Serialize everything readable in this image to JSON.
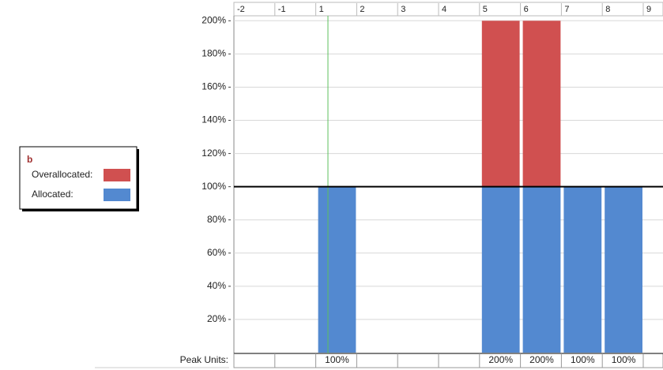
{
  "chart_data": {
    "type": "bar",
    "stacked": true,
    "legend": {
      "title": "b"
    },
    "categories": [
      "-2",
      "-1",
      "1",
      "2",
      "3",
      "4",
      "5",
      "6",
      "7",
      "8",
      "9"
    ],
    "series": [
      {
        "name": "Allocated:",
        "color": "#5389d0",
        "values": [
          null,
          null,
          100,
          null,
          null,
          null,
          100,
          100,
          100,
          100,
          null
        ]
      },
      {
        "name": "Overallocated:",
        "color": "#d05050",
        "values": [
          null,
          null,
          null,
          null,
          null,
          null,
          100,
          100,
          null,
          null,
          null
        ]
      }
    ],
    "peak_units": {
      "label": "Peak Units:",
      "values": [
        null,
        null,
        100,
        null,
        null,
        null,
        200,
        200,
        100,
        100,
        null
      ],
      "value_labels": [
        null,
        null,
        "100%",
        null,
        null,
        null,
        "200%",
        "200%",
        "100%",
        "100%",
        null
      ]
    },
    "ylim": [
      0,
      203
    ],
    "yticks": [
      {
        "value": 20,
        "label": "20%"
      },
      {
        "value": 40,
        "label": "40%"
      },
      {
        "value": 60,
        "label": "60%"
      },
      {
        "value": 80,
        "label": "80%"
      },
      {
        "value": 100,
        "label": "100%"
      },
      {
        "value": 120,
        "label": "120%"
      },
      {
        "value": 140,
        "label": "140%"
      },
      {
        "value": 160,
        "label": "160%"
      },
      {
        "value": 180,
        "label": "180%"
      },
      {
        "value": 200,
        "label": "200%"
      }
    ],
    "max_units": 100,
    "grid": true
  }
}
